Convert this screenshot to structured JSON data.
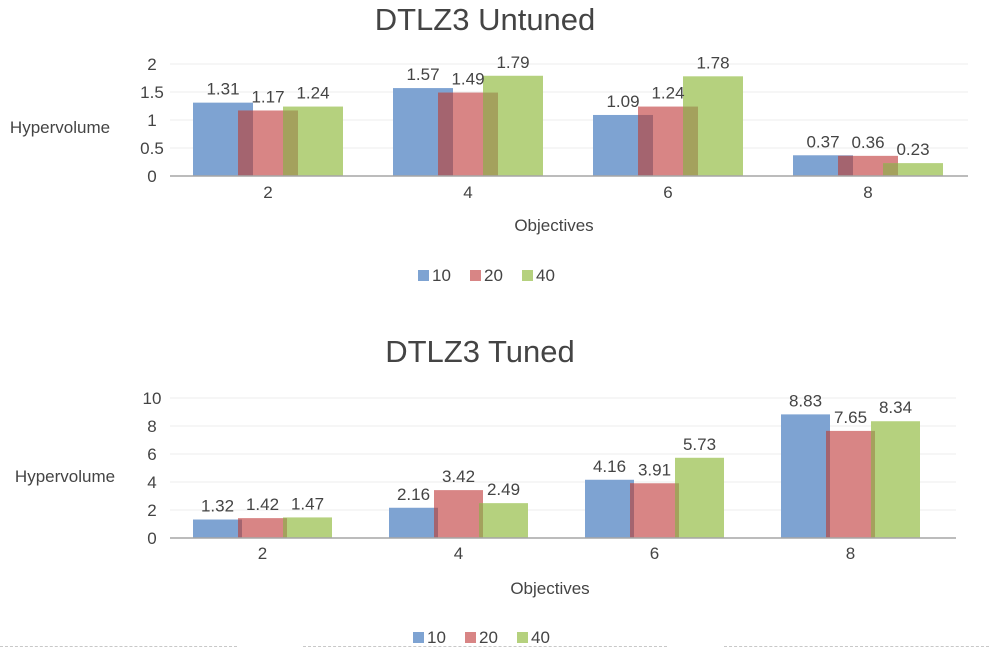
{
  "colors": {
    "series": [
      "#7ea3d2",
      "#d88585",
      "#b5d17e"
    ],
    "overlap": [
      "#a4646f",
      "#a4a15d"
    ],
    "axis": "#a6a6a6",
    "grid": "#ececec",
    "text": "#444444"
  },
  "chart_data": [
    {
      "type": "bar",
      "title": "DTLZ3 Untuned",
      "xlabel": "Objectives",
      "ylabel": "Hypervolume",
      "categories": [
        "2",
        "4",
        "6",
        "8"
      ],
      "ylim": [
        0,
        2
      ],
      "yticks": [
        "0",
        "0.5",
        "1",
        "1.5",
        "2"
      ],
      "grid": true,
      "legend": "bottom",
      "series": [
        {
          "name": "10",
          "values": [
            1.31,
            1.57,
            1.09,
            0.37
          ],
          "labels": [
            "1.31",
            "1.57",
            "1.09",
            "0.37"
          ]
        },
        {
          "name": "20",
          "values": [
            1.17,
            1.49,
            1.24,
            0.36
          ],
          "labels": [
            "1.17",
            "1.49",
            "1.24",
            "0.36"
          ]
        },
        {
          "name": "40",
          "values": [
            1.24,
            1.79,
            1.78,
            0.23
          ],
          "labels": [
            "1.24",
            "1.79",
            "1.78",
            "0.23"
          ]
        }
      ]
    },
    {
      "type": "bar",
      "title": "DTLZ3 Tuned",
      "xlabel": "Objectives",
      "ylabel": "Hypervolume",
      "categories": [
        "2",
        "4",
        "6",
        "8"
      ],
      "ylim": [
        0,
        10
      ],
      "yticks": [
        "0",
        "2",
        "4",
        "6",
        "8",
        "10"
      ],
      "grid": true,
      "legend": "bottom",
      "series": [
        {
          "name": "10",
          "values": [
            1.32,
            2.16,
            4.16,
            8.83
          ],
          "labels": [
            "1.32",
            "2.16",
            "4.16",
            "8.83"
          ]
        },
        {
          "name": "20",
          "values": [
            1.42,
            3.42,
            3.91,
            7.65
          ],
          "labels": [
            "1.42",
            "3.42",
            "3.91",
            "7.65"
          ]
        },
        {
          "name": "40",
          "values": [
            1.47,
            2.49,
            5.73,
            8.34
          ],
          "labels": [
            "1.47",
            "2.49",
            "5.73",
            "8.34"
          ]
        }
      ]
    }
  ]
}
